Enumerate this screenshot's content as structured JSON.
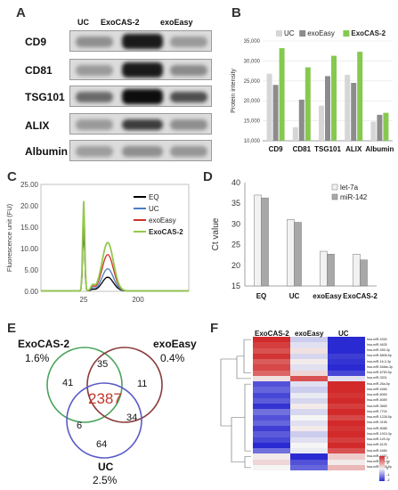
{
  "panels": {
    "A": "A",
    "B": "B",
    "C": "C",
    "D": "D",
    "E": "E",
    "F": "F"
  },
  "westernblot": {
    "columns": [
      "UC",
      "ExoCAS-2",
      "exoEasy"
    ],
    "rows": [
      "CD9",
      "CD81",
      "TSG101",
      "ALIX",
      "Albumin"
    ]
  },
  "chart_data": [
    {
      "type": "bar",
      "panel": "B",
      "categories": [
        "CD9",
        "CD81",
        "TSG101",
        "ALIX",
        "Albumin"
      ],
      "series": [
        {
          "name": "UC",
          "color": "#d6d6d6",
          "values": [
            26800,
            13400,
            18800,
            26500,
            14800
          ]
        },
        {
          "name": "exoEasy",
          "color": "#8c8c8c",
          "values": [
            24000,
            20300,
            26200,
            24500,
            16500
          ]
        },
        {
          "name": "ExoCAS-2",
          "color": "#86c94f",
          "values": [
            33200,
            28400,
            31300,
            32300,
            17000
          ]
        }
      ],
      "ylabel": "Protein intensity",
      "ylim": [
        10000,
        35000
      ],
      "yticks": [
        "10,000",
        "15,000",
        "20,000",
        "25,000",
        "30,000",
        "35,000"
      ],
      "legend": "top"
    },
    {
      "type": "line",
      "panel": "C",
      "ylabel": "Fluorescence unit (FU)",
      "yticks": [
        "0.00",
        "5.00",
        "10.00",
        "15.00",
        "20.00",
        "25.00"
      ],
      "xticks": [
        "25",
        "200"
      ],
      "ylim": [
        0,
        25
      ],
      "series": [
        {
          "name": "EQ",
          "color": "#000000",
          "spike": 14.5,
          "peak": 3.2
        },
        {
          "name": "UC",
          "color": "#4a7ec2",
          "spike": 16.0,
          "peak": 5.2
        },
        {
          "name": "exoEasy",
          "color": "#d0302a",
          "spike": 18.0,
          "peak": 8.5
        },
        {
          "name": "ExoCAS-2",
          "color": "#92c94a",
          "spike": 21.0,
          "peak": 11.3
        }
      ],
      "legend": "right"
    },
    {
      "type": "bar",
      "panel": "D",
      "categories": [
        "EQ",
        "UC",
        "exoEasy",
        "ExoCAS-2"
      ],
      "series": [
        {
          "name": "let-7a",
          "color": "#f2f2f2",
          "values": [
            37.0,
            31.1,
            23.4,
            22.7
          ]
        },
        {
          "name": "miR-142",
          "color": "#a8a8a8",
          "values": [
            36.3,
            30.4,
            22.7,
            21.3
          ]
        }
      ],
      "ylabel": "Ct value",
      "ylim": [
        15,
        40
      ],
      "yticks": [
        "15",
        "20",
        "25",
        "30",
        "35",
        "40"
      ],
      "legend": "top-right"
    }
  ],
  "venn": {
    "sets": [
      {
        "name": "ExoCAS-2",
        "pct": "1.6%",
        "color": "#4aa35a"
      },
      {
        "name": "exoEasy",
        "pct": "0.4%",
        "color": "#8a3a3a"
      },
      {
        "name": "UC",
        "pct": "2.5%",
        "color": "#5a5ac8"
      }
    ],
    "regions": {
      "exo_only": "41",
      "top": "35",
      "easy_only": "11",
      "center": "2387",
      "left_low": "6",
      "right_low": "34",
      "uc_only": "64"
    }
  },
  "heatmap": {
    "columns": [
      "ExoCAS-2",
      "exoEasy",
      "UC"
    ],
    "rows": [
      "hsa-miR-4330",
      "hsa-miR-4635",
      "hsa-miR-455-3p",
      "hsa-miR-6806-5p",
      "hsa-miR-16-2-3p",
      "hsa-miR-548ar-3p",
      "hsa-miR-6750-5p",
      "hsa-miR-3201",
      "hsa-miR-26a-5p",
      "hsa-miR-4466",
      "hsa-miR-8069",
      "hsa-miR-6089",
      "hsa-miR-3665",
      "hsa-miR-7704",
      "hsa-miR-1228-5p",
      "hsa-miR-3196",
      "hsa-miR-6088",
      "hsa-miR-1915-3p",
      "hsa-miR-149-3p",
      "hsa-miR-6125",
      "hsa-miR-4484",
      "hsa-miR-4487",
      "hsa-miR-326-5p",
      "hsa-miR-6765-5p"
    ],
    "values": [
      [
        2.0,
        -0.4,
        -2.0
      ],
      [
        1.8,
        -0.2,
        -2.2
      ],
      [
        1.6,
        0.2,
        -2.0
      ],
      [
        1.9,
        -0.3,
        -1.8
      ],
      [
        1.5,
        0.1,
        -1.9
      ],
      [
        1.7,
        -0.2,
        -2.1
      ],
      [
        1.4,
        0.3,
        -1.7
      ],
      [
        0.2,
        1.6,
        -0.2
      ],
      [
        -1.6,
        -0.2,
        2.0
      ],
      [
        -1.4,
        -0.4,
        2.1
      ],
      [
        -1.7,
        -0.1,
        1.9
      ],
      [
        -1.5,
        -0.3,
        2.2
      ],
      [
        -1.9,
        0.1,
        1.8
      ],
      [
        -1.3,
        -0.3,
        2.0
      ],
      [
        -1.6,
        0.0,
        1.7
      ],
      [
        -1.4,
        -0.2,
        2.1
      ],
      [
        -1.8,
        0.1,
        1.9
      ],
      [
        -1.5,
        -0.4,
        2.0
      ],
      [
        -1.7,
        -0.2,
        1.8
      ],
      [
        -2.0,
        0.0,
        2.2
      ],
      [
        -1.3,
        -0.1,
        1.6
      ],
      [
        0.1,
        -2.0,
        0.4
      ],
      [
        0.3,
        -1.6,
        0.1
      ],
      [
        0.0,
        -1.4,
        0.6
      ]
    ],
    "scale": [
      "2",
      "1",
      "0",
      "-1",
      "-2"
    ]
  }
}
